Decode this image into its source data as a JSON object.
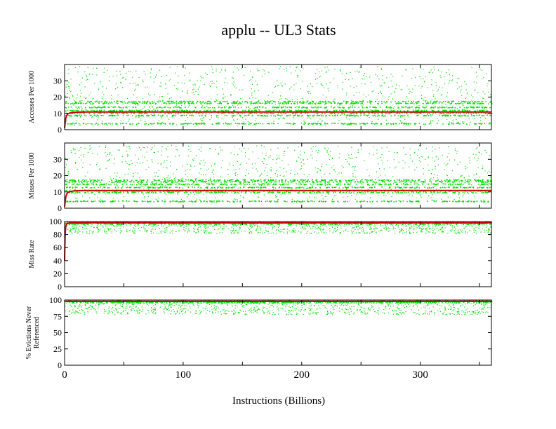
{
  "title": "applu -- UL3  Stats",
  "xlabel": "Instructions (Billions)",
  "colors": {
    "scatter": "#00e000",
    "trend": "#cc0000",
    "axis": "#000000"
  },
  "chart_data": [
    {
      "type": "scatter",
      "ylabel": "Accesses Per 1000",
      "ylim": [
        0,
        40
      ],
      "yticks": [
        0,
        10,
        20,
        30
      ],
      "xlim": [
        0,
        360
      ],
      "xticks": [
        0,
        100,
        200,
        300
      ],
      "series": [
        {
          "kind": "scatter",
          "bands": [
            4,
            9,
            10.5,
            12,
            14,
            16.5,
            17.5
          ],
          "spread_min": 3,
          "spread_max": 39
        },
        {
          "kind": "trend",
          "x": [
            0,
            1,
            2,
            3,
            5,
            8,
            12,
            20,
            40,
            80,
            360
          ],
          "y": [
            1,
            7,
            9,
            9.8,
            10.3,
            10.6,
            10.8,
            10.9,
            10.9,
            10.9,
            10.9
          ]
        }
      ]
    },
    {
      "type": "scatter",
      "ylabel": "Misses Per 1000",
      "ylim": [
        0,
        40
      ],
      "yticks": [
        0,
        10,
        20,
        30
      ],
      "xlim": [
        0,
        360
      ],
      "xticks": [
        0,
        100,
        200,
        300
      ],
      "series": [
        {
          "kind": "scatter",
          "bands": [
            4.5,
            10,
            11,
            13,
            15,
            16.5,
            17.5
          ],
          "spread_min": 4,
          "spread_max": 39
        },
        {
          "kind": "trend",
          "x": [
            0,
            1,
            2,
            3,
            5,
            8,
            12,
            20,
            40,
            80,
            360
          ],
          "y": [
            1,
            7,
            9,
            9.8,
            10.3,
            10.6,
            10.8,
            10.9,
            10.9,
            10.9,
            10.9
          ]
        }
      ]
    },
    {
      "type": "scatter",
      "ylabel": "Miss Rate",
      "ylim": [
        0,
        100
      ],
      "yticks": [
        0,
        20,
        40,
        60,
        80,
        100
      ],
      "xlim": [
        0,
        360
      ],
      "xticks": [
        0,
        100,
        200,
        300
      ],
      "series": [
        {
          "kind": "scatter",
          "bands": [
            97,
            98,
            99
          ],
          "spread_min": 82,
          "spread_max": 100
        },
        {
          "kind": "trend",
          "x": [
            0,
            0.5,
            1,
            2,
            5,
            360
          ],
          "y": [
            40,
            80,
            93,
            97,
            98,
            98
          ]
        }
      ]
    },
    {
      "type": "scatter",
      "ylabel": "% Evictions Never Referenced",
      "ylim": [
        0,
        100
      ],
      "yticks": [
        0,
        25,
        50,
        75,
        100
      ],
      "xlim": [
        0,
        360
      ],
      "xticks": [
        0,
        100,
        200,
        300
      ],
      "series": [
        {
          "kind": "scatter",
          "bands": [
            97,
            98,
            99
          ],
          "spread_min": 78,
          "spread_max": 100
        },
        {
          "kind": "trend",
          "x": [
            0,
            360
          ],
          "y": [
            98,
            98
          ]
        }
      ]
    }
  ]
}
